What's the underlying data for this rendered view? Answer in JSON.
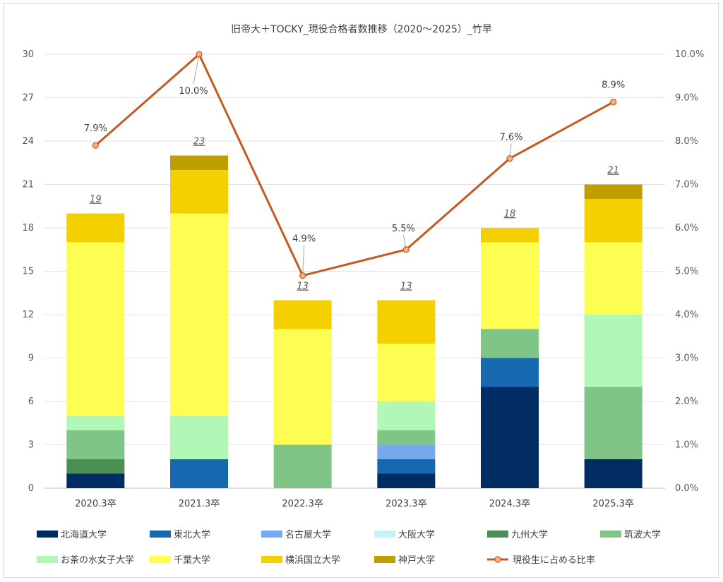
{
  "chart_data": {
    "type": "bar",
    "stacked": true,
    "title": "旧帝大＋TOCKY_現役合格者数推移（2020～2025）_竹早",
    "categories": [
      "2020.3卒",
      "2021.3卒",
      "2022.3卒",
      "2023.3卒",
      "2024.3卒",
      "2025.3卒"
    ],
    "y_left": {
      "ylim": [
        0,
        30
      ],
      "ticks": [
        "0",
        "3",
        "6",
        "9",
        "12",
        "15",
        "18",
        "21",
        "24",
        "27",
        "30"
      ]
    },
    "y_right": {
      "ylim": [
        0,
        10
      ],
      "ticks": [
        "0.0%",
        "1.0%",
        "2.0%",
        "3.0%",
        "4.0%",
        "5.0%",
        "6.0%",
        "7.0%",
        "8.0%",
        "9.0%",
        "10.0%"
      ]
    },
    "series": [
      {
        "name": "北海道大学",
        "color": "#002b63",
        "values": [
          1,
          0,
          0,
          1,
          7,
          2
        ]
      },
      {
        "name": "東北大学",
        "color": "#1669b0",
        "values": [
          0,
          2,
          0,
          1,
          2,
          0
        ]
      },
      {
        "name": "名古屋大学",
        "color": "#75aaee",
        "values": [
          0,
          0,
          0,
          1,
          0,
          0
        ]
      },
      {
        "name": "大阪大学",
        "color": "#c5f3f8",
        "values": [
          0,
          0,
          0,
          0,
          0,
          0
        ]
      },
      {
        "name": "九州大学",
        "color": "#4a9054",
        "values": [
          1,
          0,
          0,
          0,
          0,
          0
        ]
      },
      {
        "name": "筑波大学",
        "color": "#80c587",
        "values": [
          2,
          0,
          3,
          1,
          2,
          5
        ]
      },
      {
        "name": "お茶の水女子大学",
        "color": "#b1f7b5",
        "values": [
          1,
          3,
          0,
          2,
          0,
          5
        ]
      },
      {
        "name": "千葉大学",
        "color": "#fdfd52",
        "values": [
          12,
          14,
          8,
          4,
          6,
          5
        ]
      },
      {
        "name": "横浜国立大学",
        "color": "#f4d000",
        "values": [
          2,
          3,
          2,
          3,
          1,
          3
        ]
      },
      {
        "name": "神戸大学",
        "color": "#bf9e00",
        "values": [
          0,
          1,
          0,
          0,
          0,
          1
        ]
      }
    ],
    "totals": [
      "19",
      "23",
      "13",
      "13",
      "18",
      "21"
    ],
    "line_series": {
      "name": "現役生に占める比率",
      "color": "#c55a1e",
      "marker_color": "#f4b183",
      "values": [
        7.9,
        10.0,
        4.9,
        5.5,
        7.6,
        8.9
      ],
      "labels": [
        "7.9%",
        "10.0%",
        "4.9%",
        "5.5%",
        "7.6%",
        "8.9%"
      ]
    },
    "legend_position": "bottom",
    "grid": true
  }
}
